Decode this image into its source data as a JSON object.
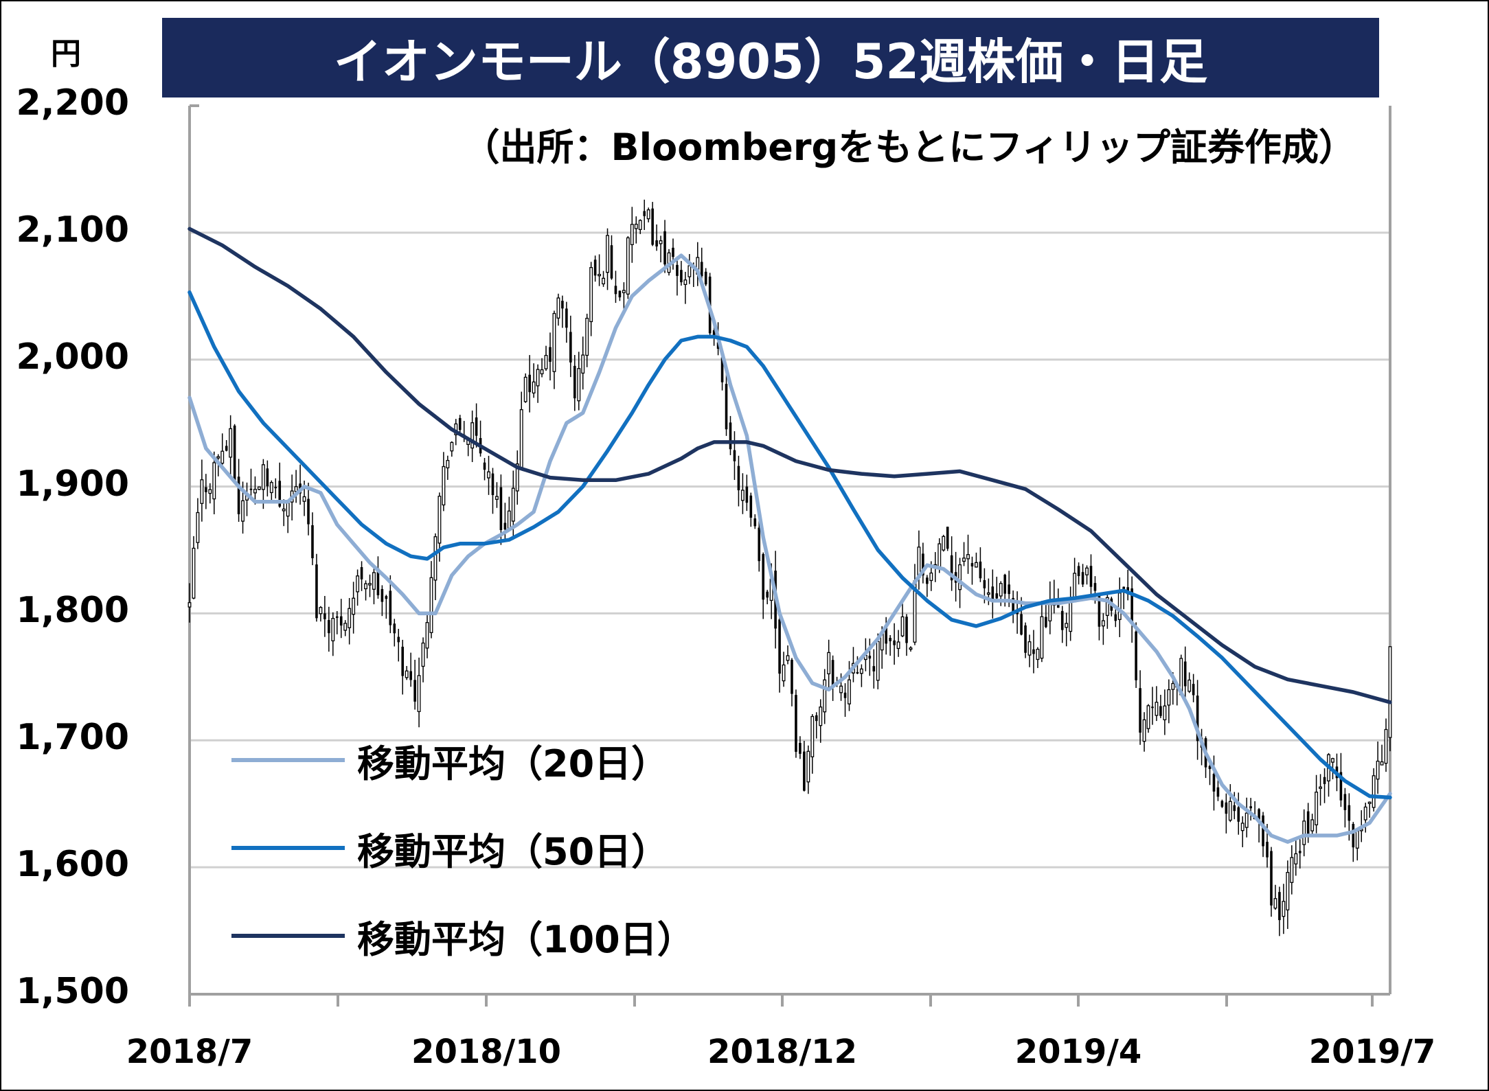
{
  "chart_data": {
    "type": "line",
    "title": "イオンモール（8905）52週株価・日足",
    "source_note": "（出所：Bloombergをもとにフィリップ証券作成）",
    "ylabel": "円",
    "ylim": [
      1500,
      2200
    ],
    "yticks": [
      "2,200",
      "2,100",
      "2,000",
      "1,900",
      "1,800",
      "1,700",
      "1,600",
      "1,500"
    ],
    "xticks": [
      "2018/7",
      "2018/10",
      "2018/12",
      "2019/4",
      "2019/7"
    ],
    "grid": true,
    "legend_position": "bottom-left",
    "candlestick_anchors": [
      [
        0,
        1800
      ],
      [
        1,
        1850
      ],
      [
        3,
        1900
      ],
      [
        5,
        1905
      ],
      [
        7,
        1925
      ],
      [
        10,
        1935
      ],
      [
        12,
        1880
      ],
      [
        14,
        1898
      ],
      [
        16,
        1895
      ],
      [
        18,
        1918
      ],
      [
        22,
        1885
      ],
      [
        24,
        1895
      ],
      [
        27,
        1900
      ],
      [
        29,
        1870
      ],
      [
        31,
        1805
      ],
      [
        34,
        1795
      ],
      [
        36,
        1792
      ],
      [
        39,
        1805
      ],
      [
        42,
        1832
      ],
      [
        45,
        1825
      ],
      [
        48,
        1805
      ],
      [
        51,
        1770
      ],
      [
        53,
        1750
      ],
      [
        55,
        1740
      ],
      [
        57,
        1770
      ],
      [
        60,
        1870
      ],
      [
        63,
        1930
      ],
      [
        66,
        1945
      ],
      [
        69,
        1940
      ],
      [
        72,
        1920
      ],
      [
        74,
        1900
      ],
      [
        76,
        1870
      ],
      [
        78,
        1880
      ],
      [
        80,
        1910
      ],
      [
        82,
        1990
      ],
      [
        84,
        1975
      ],
      [
        86,
        1990
      ],
      [
        88,
        2005
      ],
      [
        90,
        2050
      ],
      [
        92,
        2020
      ],
      [
        94,
        1975
      ],
      [
        96,
        2000
      ],
      [
        98,
        2070
      ],
      [
        100,
        2060
      ],
      [
        102,
        2090
      ],
      [
        104,
        2050
      ],
      [
        106,
        2060
      ],
      [
        108,
        2110
      ],
      [
        110,
        2100
      ],
      [
        112,
        2110
      ],
      [
        114,
        2090
      ],
      [
        116,
        2085
      ],
      [
        118,
        2070
      ],
      [
        120,
        2060
      ],
      [
        122,
        2080
      ],
      [
        124,
        2070
      ],
      [
        126,
        2050
      ],
      [
        128,
        2010
      ],
      [
        130,
        1990
      ],
      [
        132,
        1920
      ],
      [
        134,
        1905
      ],
      [
        136,
        1880
      ],
      [
        138,
        1860
      ],
      [
        140,
        1810
      ],
      [
        142,
        1830
      ],
      [
        144,
        1760
      ],
      [
        146,
        1770
      ],
      [
        148,
        1700
      ],
      [
        150,
        1670
      ],
      [
        152,
        1710
      ],
      [
        154,
        1730
      ],
      [
        156,
        1760
      ],
      [
        158,
        1745
      ],
      [
        160,
        1735
      ],
      [
        162,
        1770
      ],
      [
        164,
        1755
      ],
      [
        166,
        1760
      ],
      [
        168,
        1770
      ],
      [
        170,
        1780
      ],
      [
        172,
        1775
      ],
      [
        174,
        1795
      ],
      [
        176,
        1780
      ],
      [
        178,
        1860
      ],
      [
        180,
        1820
      ],
      [
        182,
        1840
      ],
      [
        184,
        1850
      ],
      [
        186,
        1830
      ],
      [
        188,
        1840
      ],
      [
        190,
        1850
      ],
      [
        192,
        1830
      ],
      [
        194,
        1820
      ],
      [
        196,
        1810
      ],
      [
        198,
        1815
      ],
      [
        200,
        1805
      ],
      [
        202,
        1790
      ],
      [
        204,
        1770
      ],
      [
        206,
        1775
      ],
      [
        208,
        1790
      ],
      [
        210,
        1800
      ],
      [
        212,
        1805
      ],
      [
        214,
        1790
      ],
      [
        216,
        1825
      ],
      [
        218,
        1830
      ],
      [
        220,
        1820
      ],
      [
        222,
        1795
      ],
      [
        224,
        1810
      ],
      [
        226,
        1805
      ],
      [
        228,
        1815
      ],
      [
        230,
        1800
      ],
      [
        232,
        1710
      ],
      [
        234,
        1730
      ],
      [
        236,
        1740
      ],
      [
        238,
        1720
      ],
      [
        240,
        1740
      ],
      [
        242,
        1760
      ],
      [
        244,
        1740
      ],
      [
        246,
        1710
      ],
      [
        248,
        1680
      ],
      [
        250,
        1655
      ],
      [
        252,
        1645
      ],
      [
        254,
        1650
      ],
      [
        256,
        1630
      ],
      [
        258,
        1635
      ],
      [
        260,
        1640
      ],
      [
        262,
        1620
      ],
      [
        264,
        1580
      ],
      [
        266,
        1560
      ],
      [
        268,
        1590
      ],
      [
        270,
        1610
      ],
      [
        272,
        1630
      ],
      [
        274,
        1640
      ],
      [
        276,
        1660
      ],
      [
        278,
        1680
      ],
      [
        280,
        1670
      ],
      [
        282,
        1640
      ],
      [
        284,
        1625
      ],
      [
        286,
        1630
      ],
      [
        288,
        1660
      ],
      [
        290,
        1680
      ],
      [
        292,
        1705
      ],
      [
        293,
        1765
      ]
    ],
    "series": [
      {
        "name": "移動平均（20日）",
        "color": "#8eadd4",
        "x": [
          0,
          4,
          8,
          12,
          16,
          20,
          24,
          28,
          32,
          36,
          40,
          44,
          48,
          52,
          56,
          58,
          60,
          64,
          68,
          72,
          76,
          80,
          84,
          88,
          92,
          96,
          100,
          104,
          108,
          112,
          116,
          120,
          124,
          128,
          132,
          136,
          140,
          144,
          148,
          152,
          156,
          160,
          164,
          168,
          172,
          176,
          180,
          184,
          188,
          192,
          196,
          200,
          204,
          208,
          212,
          216,
          220,
          224,
          228,
          232,
          236,
          240,
          244,
          248,
          252,
          256,
          260,
          264,
          268,
          272,
          276,
          280,
          284,
          288,
          293
        ],
        "values": [
          1970,
          1930,
          1915,
          1900,
          1888,
          1888,
          1888,
          1900,
          1895,
          1870,
          1855,
          1840,
          1828,
          1815,
          1800,
          1800,
          1800,
          1830,
          1845,
          1855,
          1862,
          1870,
          1880,
          1920,
          1950,
          1958,
          1990,
          2025,
          2050,
          2062,
          2072,
          2082,
          2070,
          2030,
          1980,
          1940,
          1860,
          1800,
          1765,
          1745,
          1740,
          1750,
          1765,
          1780,
          1800,
          1820,
          1838,
          1835,
          1825,
          1815,
          1810,
          1810,
          1808,
          1808,
          1808,
          1810,
          1812,
          1810,
          1800,
          1785,
          1770,
          1750,
          1725,
          1690,
          1665,
          1650,
          1640,
          1625,
          1620,
          1625,
          1625,
          1625,
          1628,
          1635,
          1658
        ]
      },
      {
        "name": "移動平均（50日）",
        "color": "#1170c0",
        "x": [
          0,
          6,
          12,
          18,
          24,
          30,
          36,
          42,
          48,
          54,
          58,
          62,
          66,
          72,
          78,
          84,
          90,
          96,
          102,
          108,
          112,
          116,
          120,
          124,
          128,
          132,
          136,
          140,
          144,
          150,
          156,
          162,
          168,
          174,
          180,
          186,
          192,
          198,
          204,
          210,
          216,
          222,
          228,
          234,
          240,
          246,
          252,
          258,
          264,
          270,
          276,
          282,
          288,
          293
        ],
        "values": [
          2053,
          2010,
          1975,
          1950,
          1930,
          1910,
          1890,
          1870,
          1855,
          1845,
          1843,
          1852,
          1855,
          1855,
          1858,
          1868,
          1880,
          1900,
          1928,
          1958,
          1980,
          2000,
          2015,
          2018,
          2018,
          2015,
          2010,
          1995,
          1975,
          1945,
          1915,
          1882,
          1850,
          1828,
          1810,
          1795,
          1790,
          1796,
          1805,
          1810,
          1812,
          1815,
          1818,
          1810,
          1798,
          1782,
          1765,
          1745,
          1725,
          1705,
          1685,
          1668,
          1656,
          1655
        ]
      },
      {
        "name": "移動平均（100日）",
        "color": "#1e3460",
        "x": [
          0,
          8,
          16,
          24,
          32,
          40,
          48,
          56,
          64,
          72,
          80,
          88,
          96,
          104,
          112,
          120,
          124,
          128,
          132,
          136,
          140,
          148,
          156,
          164,
          172,
          180,
          188,
          196,
          204,
          212,
          220,
          228,
          236,
          244,
          252,
          260,
          268,
          276,
          284,
          293
        ],
        "values": [
          2103,
          2090,
          2073,
          2058,
          2040,
          2018,
          1990,
          1965,
          1945,
          1930,
          1915,
          1907,
          1905,
          1905,
          1910,
          1922,
          1930,
          1935,
          1935,
          1935,
          1932,
          1920,
          1913,
          1910,
          1908,
          1910,
          1912,
          1905,
          1898,
          1882,
          1865,
          1840,
          1815,
          1795,
          1775,
          1758,
          1748,
          1743,
          1738,
          1730
        ]
      }
    ]
  }
}
